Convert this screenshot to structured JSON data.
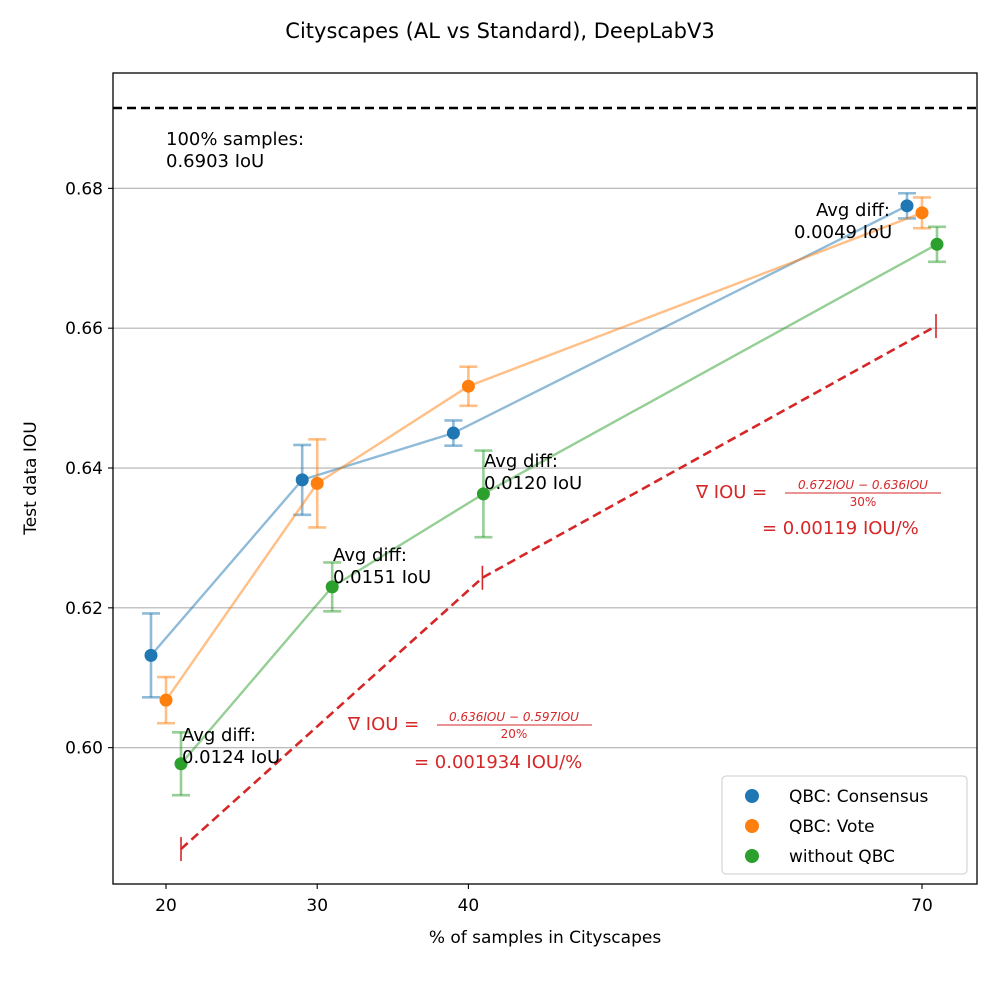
{
  "chart_data": {
    "type": "line",
    "title": "Cityscapes (AL vs Standard), DeepLabV3",
    "xlabel": "% of samples in Cityscapes",
    "ylabel": "Test data IOU",
    "x_ticks": [
      20,
      30,
      40,
      70
    ],
    "y_ticks": [
      0.6,
      0.62,
      0.64,
      0.66,
      0.68
    ],
    "y_tick_labels": [
      "0.60",
      "0.62",
      "0.64",
      "0.66",
      "0.68"
    ],
    "ylim": [
      0.5805,
      0.6965
    ],
    "grid": "horizontal",
    "legend_position": "lower-right",
    "baseline": {
      "value": 0.6903,
      "label_line1": "100% samples:",
      "label_line2": "0.6903 IoU"
    },
    "categories": [
      20,
      30,
      40,
      70
    ],
    "series": [
      {
        "name": "QBC: Consensus",
        "color": "#1f77b4",
        "values": [
          0.6132,
          0.6383,
          0.645,
          0.6775
        ],
        "errors": [
          0.006,
          0.005,
          0.0018,
          0.0018
        ]
      },
      {
        "name": "QBC: Vote",
        "color": "#ff7f0e",
        "values": [
          0.6068,
          0.6378,
          0.6517,
          0.6765
        ],
        "errors": [
          0.0033,
          0.0063,
          0.0028,
          0.0022
        ]
      },
      {
        "name": "without QBC",
        "color": "#2ca02c",
        "values": [
          0.5977,
          0.623,
          0.6363,
          0.672
        ],
        "errors": [
          0.0045,
          0.0035,
          0.0062,
          0.0025
        ]
      }
    ],
    "gradient_line": {
      "color": "#d62728",
      "points": [
        [
          20,
          0.5855
        ],
        [
          40,
          0.6243
        ],
        [
          70,
          0.6603
        ]
      ]
    },
    "annotations": [
      {
        "id": "diff20",
        "line1": "Avg diff:",
        "line2": "0.0124 IoU"
      },
      {
        "id": "diff30",
        "line1": "Avg diff:",
        "line2": "0.0151 IoU"
      },
      {
        "id": "diff40",
        "line1": "Avg diff:",
        "line2": "0.0120 IoU"
      },
      {
        "id": "diff70",
        "line1": "Avg diff:",
        "line2": "0.0049 IoU"
      }
    ],
    "gradients": [
      {
        "id": "grad1",
        "lhs": "∇ IOU =",
        "numerator": "0.636IOU − 0.597IOU",
        "denominator": "20%",
        "result": "= 0.001934 IOU/%"
      },
      {
        "id": "grad2",
        "lhs": "∇ IOU =",
        "numerator": "0.672IOU − 0.636IOU",
        "denominator": "30%",
        "result": "= 0.00119 IOU/%"
      }
    ]
  }
}
